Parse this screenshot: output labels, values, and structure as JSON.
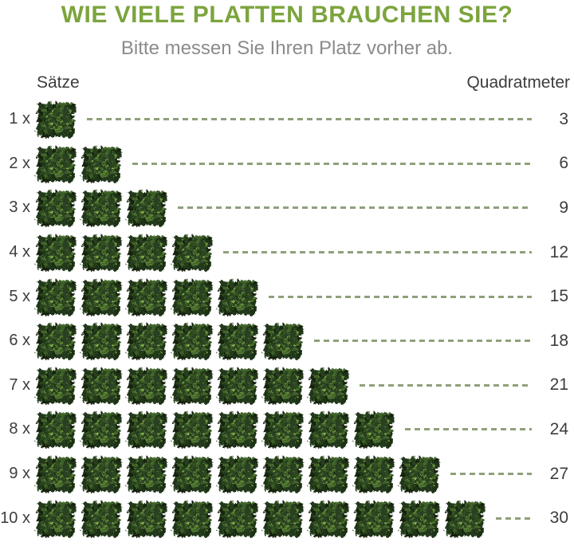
{
  "title": "WIE VIELE PLATTEN BRAUCHEN SIE?",
  "subtitle": "Bitte messen Sie Ihren Platz vorher ab.",
  "columns": {
    "left": "Sätze",
    "right": "Quadratmeter"
  },
  "colors": {
    "title_green": "#7ca43d",
    "subtitle_gray": "#8b8b8b",
    "text_dark": "#3d3d3d",
    "dash_green": "#8fa07a",
    "hedge_base_green": "#2a4120"
  },
  "icons": {
    "hedge": "hedge-panel-icon"
  },
  "chart_data": {
    "type": "table",
    "subtype": "pictogram",
    "title": "WIE VIELE PLATTEN BRAUCHEN SIE?",
    "subtitle": "Bitte messen Sie Ihren Platz vorher ab.",
    "columns": [
      "Sätze",
      "Quadratmeter"
    ],
    "xlabel": "Sätze",
    "ylabel": "Quadratmeter",
    "categories": [
      "1 x",
      "2 x",
      "3 x",
      "4 x",
      "5 x",
      "6 x",
      "7 x",
      "8 x",
      "9 x",
      "10 x"
    ],
    "values": [
      3,
      6,
      9,
      12,
      15,
      18,
      21,
      24,
      27,
      30
    ],
    "rows": [
      {
        "label": "1 x",
        "sets": 1,
        "hedge_count": 1,
        "quadratmeter": "3"
      },
      {
        "label": "2 x",
        "sets": 2,
        "hedge_count": 2,
        "quadratmeter": "6"
      },
      {
        "label": "3 x",
        "sets": 3,
        "hedge_count": 3,
        "quadratmeter": "9"
      },
      {
        "label": "4 x",
        "sets": 4,
        "hedge_count": 4,
        "quadratmeter": "12"
      },
      {
        "label": "5 x",
        "sets": 5,
        "hedge_count": 5,
        "quadratmeter": "15"
      },
      {
        "label": "6 x",
        "sets": 6,
        "hedge_count": 6,
        "quadratmeter": "18"
      },
      {
        "label": "7 x",
        "sets": 7,
        "hedge_count": 7,
        "quadratmeter": "21"
      },
      {
        "label": "8 x",
        "sets": 8,
        "hedge_count": 8,
        "quadratmeter": "24"
      },
      {
        "label": "9 x",
        "sets": 9,
        "hedge_count": 9,
        "quadratmeter": "27"
      },
      {
        "label": "10 x",
        "sets": 10,
        "hedge_count": 10,
        "quadratmeter": "30"
      }
    ]
  }
}
